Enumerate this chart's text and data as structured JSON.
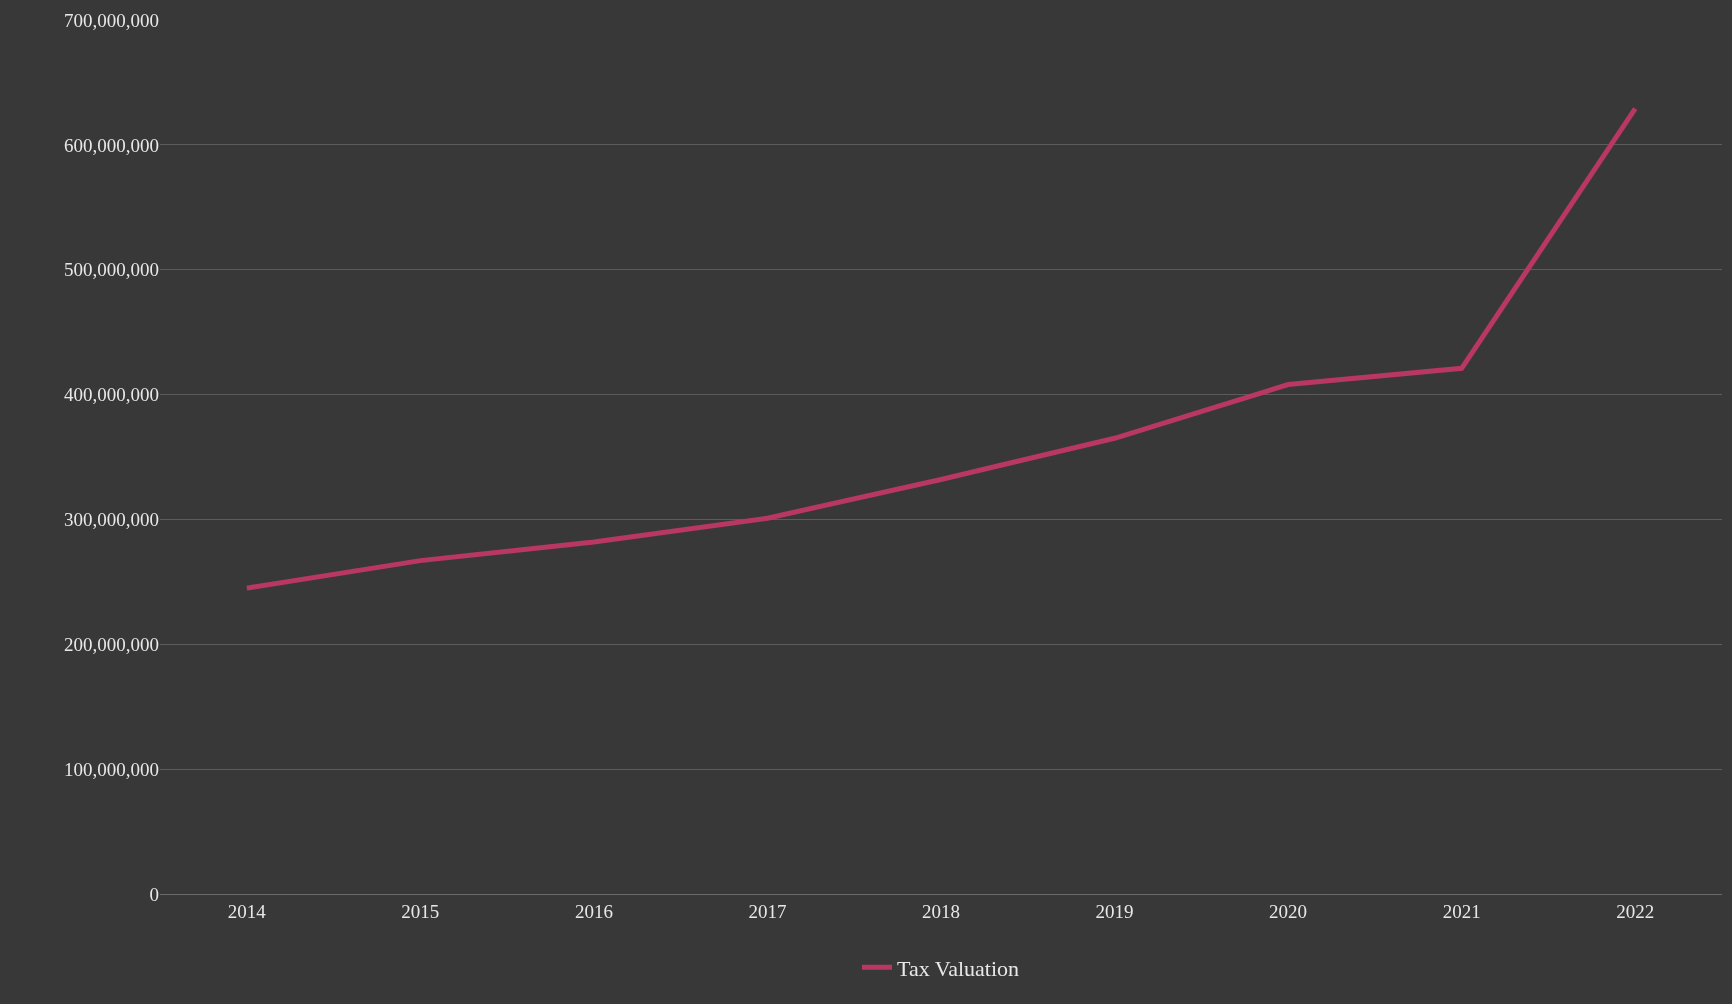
{
  "chart_data": {
    "type": "line",
    "categories": [
      "2014",
      "2015",
      "2016",
      "2017",
      "2018",
      "2019",
      "2020",
      "2021",
      "2022"
    ],
    "series": [
      {
        "name": "Tax Valuation",
        "color": "#b83763",
        "values": [
          245000000,
          267000000,
          282000000,
          301000000,
          332000000,
          365000000,
          408000000,
          421000000,
          629000000
        ]
      }
    ],
    "ylim": [
      0,
      700000000
    ],
    "yticks": [
      {
        "value": 0,
        "label": "0"
      },
      {
        "value": 100000000,
        "label": "100,000,000"
      },
      {
        "value": 200000000,
        "label": "200,000,000"
      },
      {
        "value": 300000000,
        "label": "300,000,000"
      },
      {
        "value": 400000000,
        "label": "400,000,000"
      },
      {
        "value": 500000000,
        "label": "500,000,000"
      },
      {
        "value": 600000000,
        "label": "600,000,000"
      },
      {
        "value": 700000000,
        "label": "700,000,000"
      }
    ],
    "grid": "y",
    "legend": "bottom",
    "marker": "none",
    "line_style": "solid"
  }
}
